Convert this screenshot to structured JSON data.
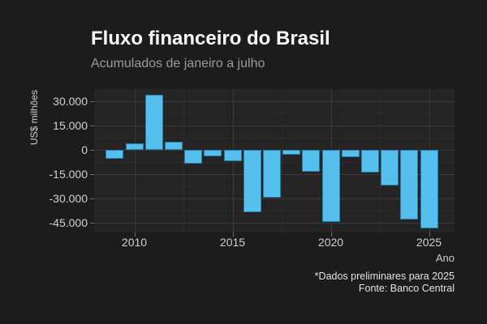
{
  "header": {
    "title": "Fluxo financeiro do Brasil",
    "subtitle": "Acumulados de janeiro a julho"
  },
  "chart_data": {
    "type": "bar",
    "title": "Fluxo financeiro do Brasil",
    "subtitle": "Acumulados de janeiro a julho",
    "xlabel": "Ano",
    "ylabel": "US$ milhões",
    "categories": [
      2009,
      2010,
      2011,
      2012,
      2013,
      2014,
      2015,
      2016,
      2017,
      2018,
      2019,
      2020,
      2021,
      2022,
      2023,
      2024,
      2025
    ],
    "values": [
      -5500,
      4000,
      34000,
      5000,
      -8500,
      -4000,
      -7000,
      -38500,
      -29500,
      -3000,
      -13500,
      -44500,
      -4500,
      -14000,
      -22000,
      -43000,
      -48500
    ],
    "ylim": [
      -51000,
      37500
    ],
    "xlim": [
      2008,
      2026.3
    ],
    "grid": true,
    "legend": false,
    "y_ticks": [
      {
        "v": 30000,
        "label": "30.000"
      },
      {
        "v": 15000,
        "label": "15.000"
      },
      {
        "v": 0,
        "label": "0"
      },
      {
        "v": -15000,
        "label": "-15.000"
      },
      {
        "v": -30000,
        "label": "-30.000"
      },
      {
        "v": -45000,
        "label": "-45.000"
      }
    ],
    "y_minor": [
      22500,
      7500,
      -7500,
      -22500,
      -37500
    ],
    "x_ticks": [
      {
        "v": 2010,
        "label": "2010"
      },
      {
        "v": 2015,
        "label": "2015"
      },
      {
        "v": 2020,
        "label": "2020"
      },
      {
        "v": 2025,
        "label": "2025"
      }
    ],
    "x_minor": [
      2012.5,
      2017.5,
      2022.5
    ]
  },
  "caption": {
    "line1": "*Dados preliminares para 2025",
    "line2": "Fonte: Banco Central"
  },
  "colors": {
    "background": "#1c1c1c",
    "panel": "#242424",
    "grid_major": "#3b3b3b",
    "grid_minor": "#2c2c2c",
    "bar": "#55bfee",
    "bar_border": "#2a7ca8",
    "tick": "#6b6b6b"
  }
}
